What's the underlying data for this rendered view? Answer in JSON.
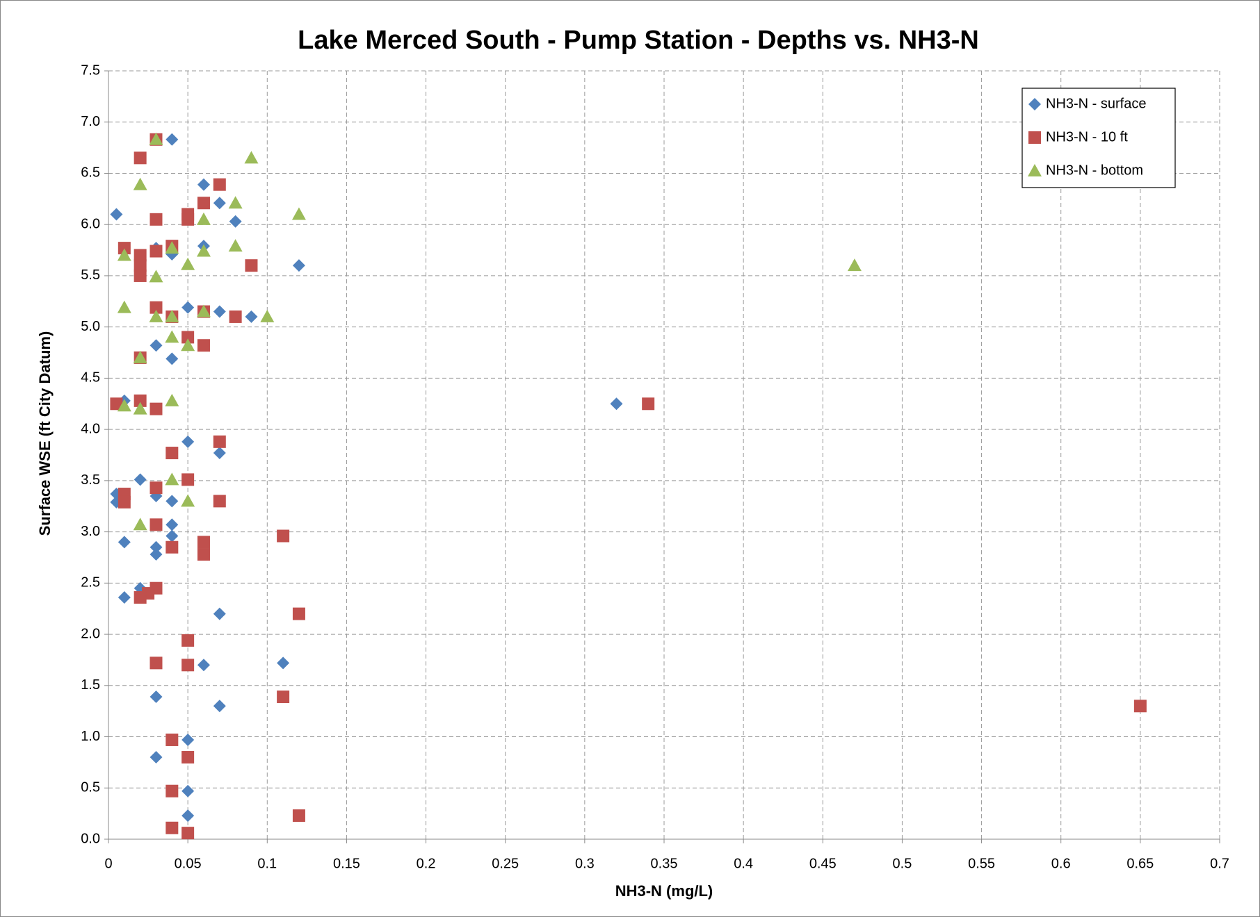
{
  "chart_data": {
    "type": "scatter",
    "title": "Lake Merced South - Pump Station - Depths vs. NH3-N",
    "x_label": "NH3-N (mg/L)",
    "y_label": "Surface WSE (ft City Datum)",
    "xlim": [
      0,
      0.7
    ],
    "ylim": [
      0,
      7.5
    ],
    "xticks": [
      0,
      0.05,
      0.1,
      0.15,
      0.2,
      0.25,
      0.3,
      0.35,
      0.4,
      0.45,
      0.5,
      0.55,
      0.6,
      0.65,
      0.7
    ],
    "yticks": [
      {
        "value": 0,
        "label": "0.0"
      },
      0.5,
      {
        "value": 1,
        "label": "1.0"
      },
      1.5,
      {
        "value": 2,
        "label": "2.0"
      },
      2.5,
      {
        "value": 3,
        "label": "3.0"
      },
      3.5,
      {
        "value": 4,
        "label": "4.0"
      },
      4.5,
      {
        "value": 5,
        "label": "5.0"
      },
      5.5,
      {
        "value": 6,
        "label": "6.0"
      },
      6.5,
      {
        "value": 7,
        "label": "7.0"
      },
      7.5
    ],
    "grid": true,
    "legend": "upper right",
    "series": [
      {
        "name": "NH3-N - surface",
        "color": "#4f81bd",
        "marker": "diamond",
        "x": [
          0.005,
          0.04,
          0.06,
          0.07,
          0.08,
          0.03,
          0.04,
          0.06,
          0.12,
          0.05,
          0.07,
          0.09,
          0.03,
          0.04,
          0.01,
          0.32,
          0.05,
          0.07,
          0.02,
          0.005,
          0.005,
          0.03,
          0.04,
          0.04,
          0.04,
          0.01,
          0.03,
          0.03,
          0.02,
          0.01,
          0.07,
          0.06,
          0.11,
          0.03,
          0.07,
          0.05,
          0.03,
          0.05,
          0.05
        ],
        "values": [
          6.1,
          6.83,
          6.39,
          6.21,
          6.03,
          5.77,
          5.71,
          5.79,
          5.6,
          5.19,
          5.15,
          5.1,
          4.82,
          4.69,
          4.28,
          4.25,
          3.88,
          3.77,
          3.51,
          3.37,
          3.29,
          3.35,
          3.3,
          3.07,
          2.96,
          2.9,
          2.85,
          2.78,
          2.45,
          2.36,
          2.2,
          1.7,
          1.72,
          1.39,
          1.3,
          0.97,
          0.8,
          0.47,
          0.23
        ]
      },
      {
        "name": "NH3-N - 10 ft",
        "color": "#c0504d",
        "marker": "square",
        "x": [
          0.03,
          0.02,
          0.07,
          0.06,
          0.05,
          0.05,
          0.03,
          0.01,
          0.04,
          0.03,
          0.02,
          0.02,
          0.02,
          0.09,
          0.03,
          0.04,
          0.06,
          0.08,
          0.05,
          0.06,
          0.02,
          0.005,
          0.02,
          0.03,
          0.34,
          0.07,
          0.04,
          0.05,
          0.03,
          0.01,
          0.01,
          0.07,
          0.03,
          0.11,
          0.06,
          0.06,
          0.04,
          0.03,
          0.025,
          0.02,
          0.12,
          0.05,
          0.03,
          0.05,
          0.11,
          0.65,
          0.04,
          0.05,
          0.04,
          0.12,
          0.04,
          0.05
        ],
        "values": [
          6.83,
          6.65,
          6.39,
          6.21,
          6.1,
          6.05,
          6.05,
          5.77,
          5.79,
          5.74,
          5.7,
          5.6,
          5.5,
          5.6,
          5.19,
          5.1,
          5.15,
          5.1,
          4.9,
          4.82,
          4.7,
          4.25,
          4.28,
          4.2,
          4.25,
          3.88,
          3.77,
          3.51,
          3.43,
          3.37,
          3.29,
          3.3,
          3.07,
          2.96,
          2.9,
          2.78,
          2.85,
          2.45,
          2.4,
          2.36,
          2.2,
          1.94,
          1.72,
          1.7,
          1.39,
          1.3,
          0.97,
          0.8,
          0.47,
          0.23,
          0.11,
          0.06
        ]
      },
      {
        "name": "NH3-N - bottom",
        "color": "#9bbb59",
        "marker": "triangle",
        "x": [
          0.03,
          0.09,
          0.02,
          0.08,
          0.12,
          0.06,
          0.01,
          0.04,
          0.06,
          0.08,
          0.05,
          0.03,
          0.47,
          0.01,
          0.03,
          0.04,
          0.06,
          0.1,
          0.04,
          0.05,
          0.02,
          0.01,
          0.02,
          0.04,
          0.04,
          0.05,
          0.02
        ],
        "values": [
          6.83,
          6.65,
          6.39,
          6.21,
          6.1,
          6.05,
          5.7,
          5.77,
          5.74,
          5.79,
          5.61,
          5.49,
          5.6,
          5.19,
          5.1,
          5.1,
          5.15,
          5.1,
          4.9,
          4.82,
          4.7,
          4.23,
          4.2,
          4.28,
          3.51,
          3.3,
          3.07
        ]
      }
    ]
  }
}
